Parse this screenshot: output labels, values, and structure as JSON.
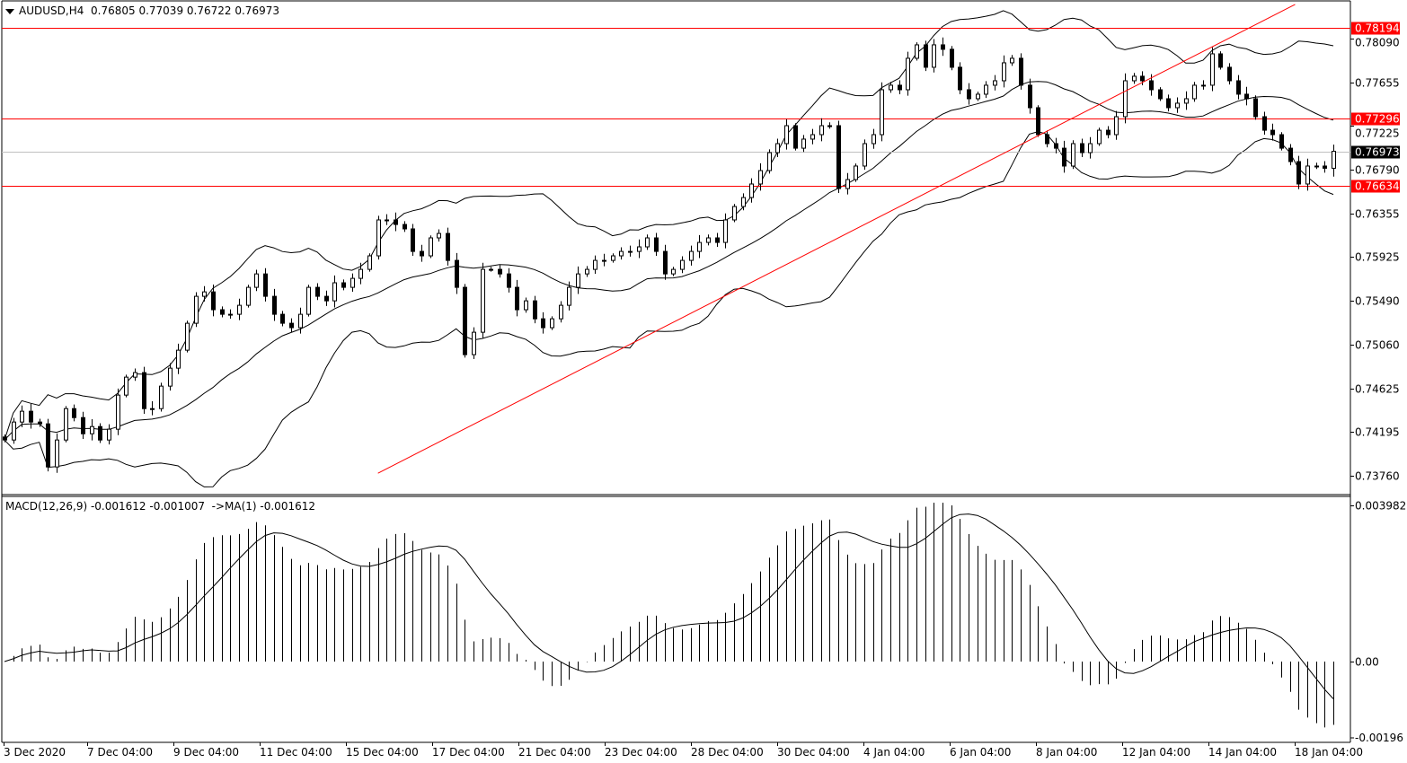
{
  "header": {
    "symbol": "AUDUSD,H4",
    "open": "0.76805",
    "high": "0.77039",
    "low": "0.76722",
    "close": "0.76973"
  },
  "macd_header": {
    "label": "MACD(12,26,9)",
    "macd": "-0.001612",
    "signal": "-0.001007",
    "ma_label": "->MA(1)",
    "ma": "-0.001612"
  },
  "colors": {
    "level_line": "#ff0000",
    "trend_line": "#ff0000",
    "current_price_bg": "#000000",
    "grid": "#c0c0c0",
    "text": "#000000"
  },
  "chart_data": [
    {
      "type": "candlestick",
      "title": "AUDUSD,H4",
      "ylim": [
        0.7352,
        0.7841
      ],
      "price_ticks": [
        "0.78090",
        "0.77655",
        "0.77225",
        "0.76790",
        "0.76355",
        "0.75925",
        "0.75490",
        "0.75060",
        "0.74625",
        "0.74195",
        "0.73760"
      ],
      "time_labels": [
        "3 Dec 2020",
        "7 Dec 04:00",
        "9 Dec 04:00",
        "11 Dec 04:00",
        "15 Dec 04:00",
        "17 Dec 04:00",
        "21 Dec 04:00",
        "23 Dec 04:00",
        "28 Dec 04:00",
        "30 Dec 04:00",
        "4 Jan 04:00",
        "6 Jan 04:00",
        "8 Jan 04:00",
        "12 Jan 04:00",
        "14 Jan 04:00",
        "18 Jan 04:00"
      ],
      "levels": [
        {
          "value": "0.78194",
          "kind": "horizontal"
        },
        {
          "value": "0.77296",
          "kind": "horizontal"
        },
        {
          "value": "0.76634",
          "kind": "horizontal"
        }
      ],
      "current_price": "0.76973",
      "trendline": {
        "from": {
          "index": 43,
          "price": 0.73783
        },
        "to": {
          "index": 148.6,
          "price": 0.78429
        }
      },
      "indicators": [
        "Bollinger Bands(20,2)"
      ],
      "last_candle": {
        "open": 0.76805,
        "high": 0.77039,
        "low": 0.76722,
        "close": 0.76973
      },
      "closes": [
        0.74112,
        0.7429,
        0.74397,
        0.7429,
        0.74272,
        0.73845,
        0.74112,
        0.74423,
        0.74334,
        0.74174,
        0.74245,
        0.74112,
        0.74219,
        0.74557,
        0.74735,
        0.7478,
        0.74423,
        0.74423,
        0.74646,
        0.74824,
        0.75002,
        0.75269,
        0.75536,
        0.7558,
        0.75403,
        0.75358,
        0.75358,
        0.75447,
        0.75625,
        0.75758,
        0.75536,
        0.75358,
        0.75269,
        0.75225,
        0.75358,
        0.75625,
        0.75536,
        0.75491,
        0.7567,
        0.75625,
        0.75714,
        0.75803,
        0.75937,
        0.76293,
        0.76293,
        0.76248,
        0.76204,
        0.75981,
        0.75937,
        0.76115,
        0.76159,
        0.75892,
        0.75625,
        0.74958,
        0.7518,
        0.75803,
        0.75803,
        0.75758,
        0.75625,
        0.75403,
        0.75491,
        0.75313,
        0.75225,
        0.75313,
        0.75447,
        0.75625,
        0.75758,
        0.75803,
        0.75892,
        0.75892,
        0.75937,
        0.75981,
        0.75981,
        0.76026,
        0.76115,
        0.75981,
        0.75758,
        0.75803,
        0.75892,
        0.75981,
        0.7607,
        0.76115,
        0.7607,
        0.76293,
        0.76426,
        0.76515,
        0.76649,
        0.76782,
        0.7696,
        0.77049,
        0.77227,
        0.77004,
        0.77094,
        0.77138,
        0.77227,
        0.77227,
        0.76604,
        0.76693,
        0.76827,
        0.77049,
        0.77138,
        0.77583,
        0.77628,
        0.77583,
        0.77895,
        0.78028,
        0.77806,
        0.78028,
        0.77984,
        0.77806,
        0.77583,
        0.77494,
        0.77539,
        0.77628,
        0.77672,
        0.7785,
        0.77895,
        0.77628,
        0.77405,
        0.77138,
        0.77049,
        0.77004,
        0.76827,
        0.77049,
        0.7696,
        0.77049,
        0.77182,
        0.77138,
        0.77316,
        0.77672,
        0.77717,
        0.77672,
        0.77583,
        0.77494,
        0.77405,
        0.7745,
        0.77494,
        0.77628,
        0.77628,
        0.77939,
        0.77806,
        0.77672,
        0.77539,
        0.77494,
        0.77316,
        0.77182,
        0.77138,
        0.77004,
        0.76871,
        0.76649,
        0.76827,
        0.76827,
        0.76805,
        0.76973
      ]
    },
    {
      "type": "bar",
      "title": "MACD(12,26,9)",
      "ylim": [
        -0.00196,
        0.003982
      ],
      "y_ticks": [
        "0.003982",
        "0.00",
        "-0.00196"
      ]
    }
  ]
}
